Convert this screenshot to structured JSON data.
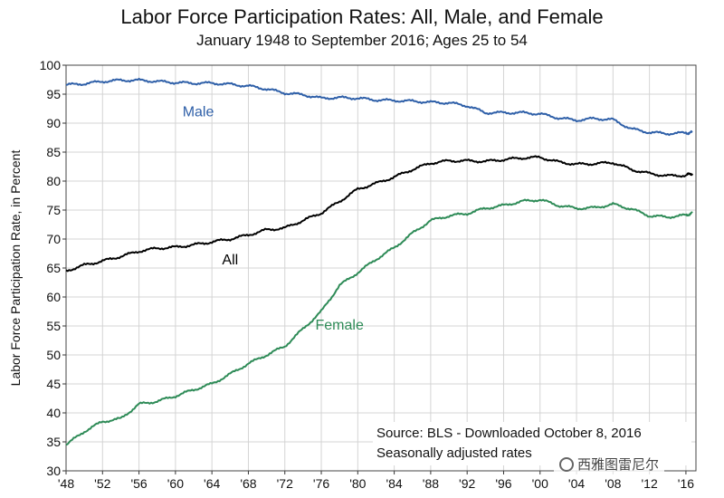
{
  "chart_data": {
    "type": "line",
    "title": "Labor Force Participation Rates:  All, Male, and Female",
    "subtitle": "January 1948 to September 2016; Ages 25 to 54",
    "xlabel": "",
    "ylabel": "Labor Force Participation Rate, in Percent",
    "ylim": [
      30,
      100
    ],
    "xlim": [
      1948,
      2017.1
    ],
    "yticks": [
      30,
      35,
      40,
      45,
      50,
      55,
      60,
      65,
      70,
      75,
      80,
      85,
      90,
      95,
      100
    ],
    "xticks": [
      {
        "value": 1948,
        "label": "'48"
      },
      {
        "value": 1952,
        "label": "'52"
      },
      {
        "value": 1956,
        "label": "'56"
      },
      {
        "value": 1960,
        "label": "'60"
      },
      {
        "value": 1964,
        "label": "'64"
      },
      {
        "value": 1968,
        "label": "'68"
      },
      {
        "value": 1972,
        "label": "'72"
      },
      {
        "value": 1976,
        "label": "'76"
      },
      {
        "value": 1980,
        "label": "'80"
      },
      {
        "value": 1984,
        "label": "'84"
      },
      {
        "value": 1988,
        "label": "'88"
      },
      {
        "value": 1992,
        "label": "'92"
      },
      {
        "value": 1996,
        "label": "'96"
      },
      {
        "value": 2000,
        "label": "'00"
      },
      {
        "value": 2004,
        "label": "'04"
      },
      {
        "value": 2008,
        "label": "'08"
      },
      {
        "value": 2012,
        "label": "'12"
      },
      {
        "value": 2016,
        "label": "'16"
      }
    ],
    "grid": true,
    "series": [
      {
        "name": "Male",
        "color": "#2e5fa8",
        "label_at": [
          1962.5,
          91.2
        ],
        "x": [
          1948,
          1950,
          1952,
          1954,
          1956,
          1958,
          1960,
          1962,
          1964,
          1966,
          1968,
          1970,
          1972,
          1974,
          1976,
          1978,
          1980,
          1982,
          1984,
          1986,
          1988,
          1990,
          1992,
          1994,
          1996,
          1998,
          2000,
          2002,
          2004,
          2006,
          2008,
          2010,
          2012,
          2014,
          2016,
          2016.7
        ],
        "values": [
          96.6,
          96.8,
          97.2,
          97.4,
          97.4,
          97.2,
          97.0,
          96.9,
          96.9,
          96.7,
          96.4,
          95.9,
          95.2,
          94.9,
          94.3,
          94.4,
          94.3,
          94.0,
          93.9,
          93.8,
          93.6,
          93.5,
          93.0,
          91.8,
          91.8,
          91.8,
          91.6,
          90.9,
          90.5,
          90.8,
          90.6,
          89.0,
          88.4,
          88.2,
          88.3,
          88.4
        ]
      },
      {
        "name": "All",
        "color": "#000000",
        "label_at": [
          1966,
          65.6
        ],
        "x": [
          1948,
          1950,
          1952,
          1954,
          1956,
          1958,
          1960,
          1962,
          1964,
          1966,
          1968,
          1970,
          1972,
          1974,
          1976,
          1978,
          1980,
          1982,
          1984,
          1986,
          1988,
          1990,
          1992,
          1994,
          1996,
          1998,
          2000,
          2002,
          2004,
          2006,
          2008,
          2010,
          2012,
          2014,
          2016,
          2016.7
        ],
        "values": [
          64.5,
          65.5,
          66.2,
          67.0,
          67.9,
          68.4,
          68.6,
          69.0,
          69.5,
          70.0,
          70.7,
          71.6,
          71.9,
          73.2,
          74.5,
          76.5,
          78.6,
          79.6,
          80.7,
          82.0,
          83.1,
          83.5,
          83.5,
          83.4,
          83.7,
          84.0,
          84.1,
          83.3,
          82.9,
          83.0,
          83.2,
          82.0,
          81.3,
          80.9,
          81.0,
          81.3
        ]
      },
      {
        "name": "Female",
        "color": "#2e8b57",
        "label_at": [
          1978,
          54.4
        ],
        "x": [
          1948,
          1950,
          1952,
          1954,
          1956,
          1958,
          1960,
          1962,
          1964,
          1966,
          1968,
          1970,
          1972,
          1974,
          1976,
          1978,
          1980,
          1982,
          1984,
          1986,
          1988,
          1990,
          1992,
          1994,
          1996,
          1998,
          2000,
          2002,
          2004,
          2006,
          2008,
          2010,
          2012,
          2014,
          2016,
          2016.7
        ],
        "values": [
          34.5,
          36.8,
          38.5,
          39.0,
          41.5,
          42.0,
          42.9,
          44.0,
          45.0,
          46.7,
          48.5,
          50.0,
          51.5,
          54.5,
          57.5,
          62.0,
          64.2,
          66.5,
          68.5,
          71.0,
          73.2,
          74.0,
          74.4,
          75.3,
          75.8,
          76.5,
          76.8,
          75.8,
          75.3,
          75.4,
          76.0,
          75.2,
          74.0,
          73.8,
          74.1,
          74.5
        ]
      }
    ],
    "annotations": [
      "Source:  BLS - Downloaded October 8, 2016",
      "Seasonally adjusted rates"
    ]
  },
  "watermark": "西雅图雷尼尔"
}
